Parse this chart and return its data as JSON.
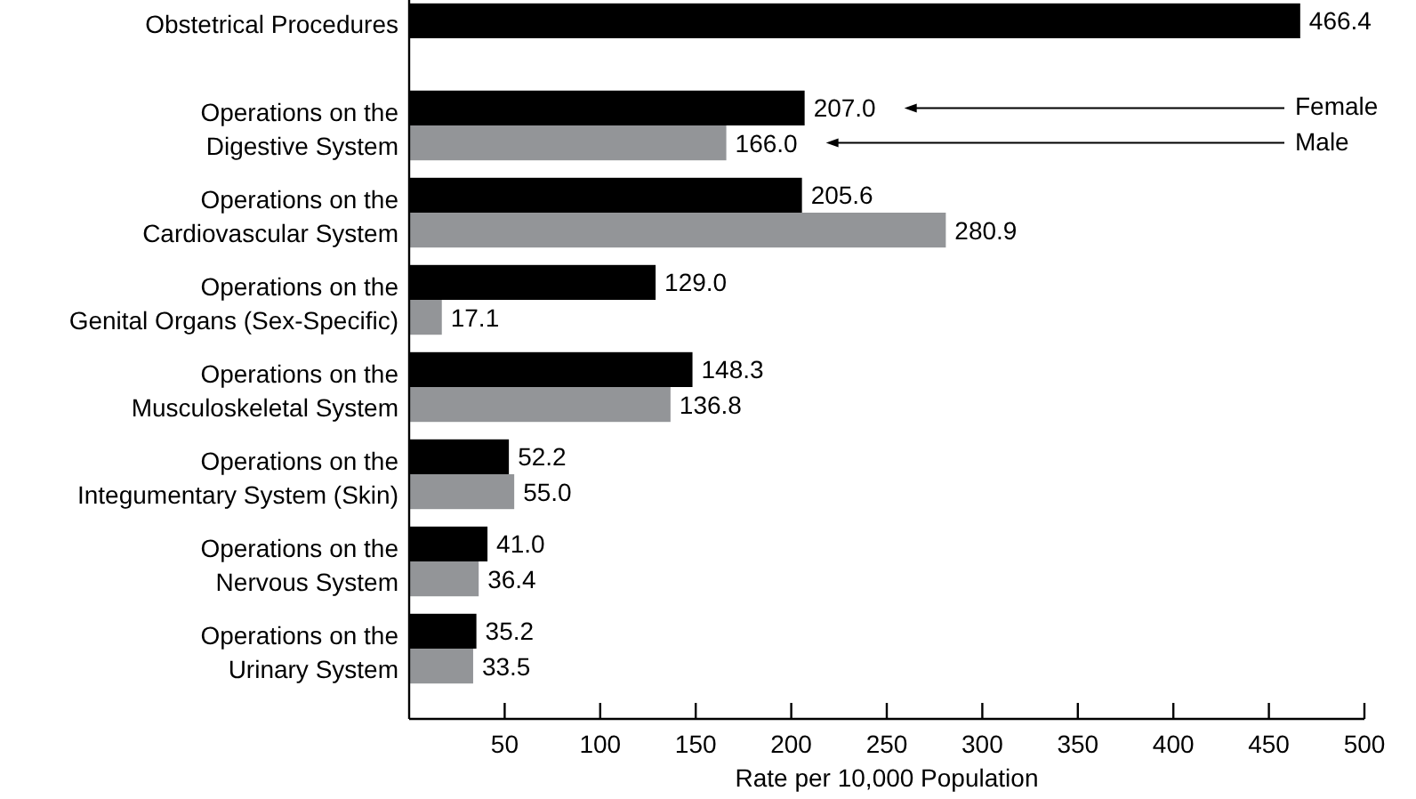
{
  "chart_data": {
    "type": "bar",
    "orientation": "horizontal",
    "categories": [
      "Obstetrical Procedures",
      "Operations on the\nDigestive System",
      "Operations on the\nCardiovascular System",
      "Operations on the\nGenital Organs (Sex-Specific)",
      "Operations on the\nMusculoskeletal System",
      "Operations on the\nIntegumentary System (Skin)",
      "Operations on the\nNervous System",
      "Operations on the\nUrinary System"
    ],
    "series": [
      {
        "name": "Female",
        "color": "#000000",
        "values": [
          466.4,
          207.0,
          205.6,
          129.0,
          148.3,
          52.2,
          41.0,
          35.2
        ],
        "value_labels": [
          "466.4",
          "207.0",
          "205.6",
          "129.0",
          "148.3",
          "52.2",
          "41.0",
          "35.2"
        ]
      },
      {
        "name": "Male",
        "color": "#939598",
        "values": [
          null,
          166.0,
          280.9,
          17.1,
          136.8,
          55.0,
          36.4,
          33.5
        ],
        "value_labels": [
          null,
          "166.0",
          "280.9",
          "17.1",
          "136.8",
          "55.0",
          "36.4",
          "33.5"
        ]
      }
    ],
    "xlabel": "Rate per 10,000 Population",
    "xlim": [
      0,
      500
    ],
    "xticks": [
      50,
      100,
      150,
      200,
      250,
      300,
      350,
      400,
      450,
      500
    ],
    "legend": "top right"
  }
}
